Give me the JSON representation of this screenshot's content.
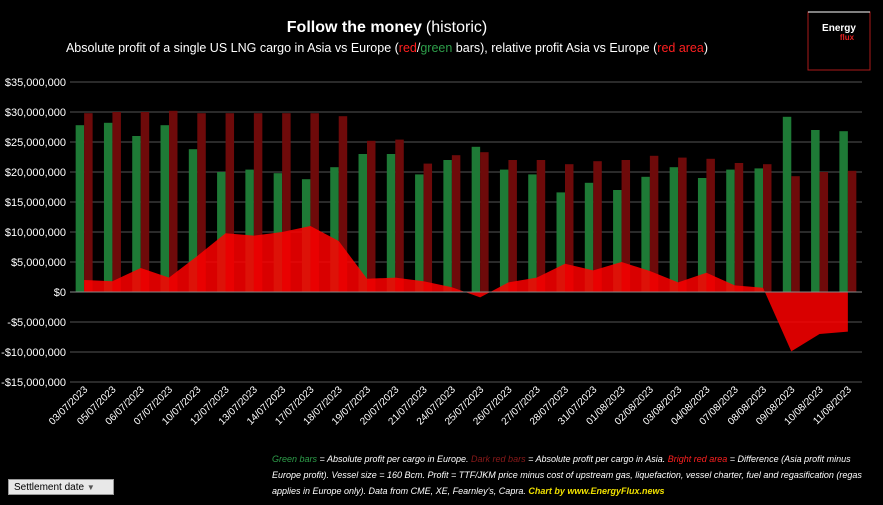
{
  "chart_data": {
    "type": "bar_area",
    "title": "Follow the money",
    "title_suffix": "(historic)",
    "subtitle": [
      {
        "text": "Absolute profit of a single US LNG cargo in Asia vs Europe (",
        "color": "#ffffff"
      },
      {
        "text": "red",
        "color": "#ff2020"
      },
      {
        "text": "/",
        "color": "#ffffff"
      },
      {
        "text": "green",
        "color": "#2e9e4a"
      },
      {
        "text": " bars), relative profit Asia vs Europe (",
        "color": "#ffffff"
      },
      {
        "text": "red area",
        "color": "#ff2020"
      },
      {
        "text": ")",
        "color": "#ffffff"
      }
    ],
    "categories": [
      "03/07/2023",
      "05/07/2023",
      "06/07/2023",
      "07/07/2023",
      "10/07/2023",
      "12/07/2023",
      "13/07/2023",
      "14/07/2023",
      "17/07/2023",
      "18/07/2023",
      "19/07/2023",
      "20/07/2023",
      "21/07/2023",
      "24/07/2023",
      "25/07/2023",
      "26/07/2023",
      "27/07/2023",
      "28/07/2023",
      "31/07/2023",
      "01/08/2023",
      "02/08/2023",
      "03/08/2023",
      "04/08/2023",
      "07/08/2023",
      "08/08/2023",
      "09/08/2023",
      "10/08/2023",
      "11/08/2023"
    ],
    "series": [
      {
        "color": "#1e7a36",
        "kind": "bar",
        "values": [
          27800000,
          28200000,
          26000000,
          27800000,
          23800000,
          20000000,
          20400000,
          19800000,
          18800000,
          20800000,
          23000000,
          23000000,
          19600000,
          22000000,
          24200000,
          20400000,
          19600000,
          16600000,
          18200000,
          17000000,
          19200000,
          20800000,
          19000000,
          20400000,
          20600000,
          29200000,
          27000000,
          26800000
        ]
      },
      {
        "color": "#6e0a0a",
        "kind": "bar",
        "values": [
          29800000,
          30000000,
          30000000,
          30200000,
          29800000,
          29800000,
          29800000,
          29800000,
          29800000,
          29300000,
          25200000,
          25400000,
          21400000,
          22800000,
          23300000,
          22000000,
          22000000,
          21300000,
          21800000,
          22000000,
          22700000,
          22400000,
          22200000,
          21500000,
          21300000,
          19300000,
          20000000,
          20200000
        ]
      },
      {
        "color": "#ff0000",
        "kind": "area",
        "values": [
          2000000,
          1800000,
          4000000,
          2400000,
          6000000,
          9800000,
          9400000,
          10000000,
          11000000,
          8500000,
          2200000,
          2400000,
          1800000,
          800000,
          -900000,
          1600000,
          2400000,
          4700000,
          3600000,
          5000000,
          3500000,
          1600000,
          3200000,
          1100000,
          700000,
          -9900000,
          -7000000,
          -6600000
        ]
      }
    ],
    "ylim": [
      -15000000,
      35000000
    ],
    "yticks": [
      {
        "value": -15000000,
        "label": "-$15,000,000"
      },
      {
        "value": -10000000,
        "label": "-$10,000,000"
      },
      {
        "value": -5000000,
        "label": "-$5,000,000"
      },
      {
        "value": 0,
        "label": "$0"
      },
      {
        "value": 5000000,
        "label": "$5,000,000"
      },
      {
        "value": 10000000,
        "label": "$10,000,000"
      },
      {
        "value": 15000000,
        "label": "$15,000,000"
      },
      {
        "value": 20000000,
        "label": "$20,000,000"
      },
      {
        "value": 25000000,
        "label": "$25,000,000"
      },
      {
        "value": 30000000,
        "label": "$30,000,000"
      },
      {
        "value": 35000000,
        "label": "$35,000,000"
      }
    ],
    "grid": true,
    "footnote": [
      {
        "text": "Green bars",
        "color": "#2e9e4a"
      },
      {
        "text": " = Absolute profit per cargo in Europe. ",
        "color": "#ffffff"
      },
      {
        "text": "Dark red bars",
        "color": "#8b1a1a"
      },
      {
        "text": " = Absolute profit per cargo in Asia. ",
        "color": "#ffffff"
      },
      {
        "text": "Bright red area",
        "color": "#ff2020"
      },
      {
        "text": " = Difference (Asia profit minus Europe profit). Vessel size = 160 Bcm. Profit = TTF/JKM price minus cost of upstream gas, liquefaction, vessel charter, fuel and regasification (regas applies in Europe only). Data from CME, XE, Fearnley's, Capra. ",
        "color": "#ffffff"
      },
      {
        "text": "Chart by www.EnergyFlux.news",
        "color": "#f0e000"
      }
    ],
    "logo": [
      "Energy",
      "flux"
    ],
    "filter_button": "Settlement date"
  }
}
